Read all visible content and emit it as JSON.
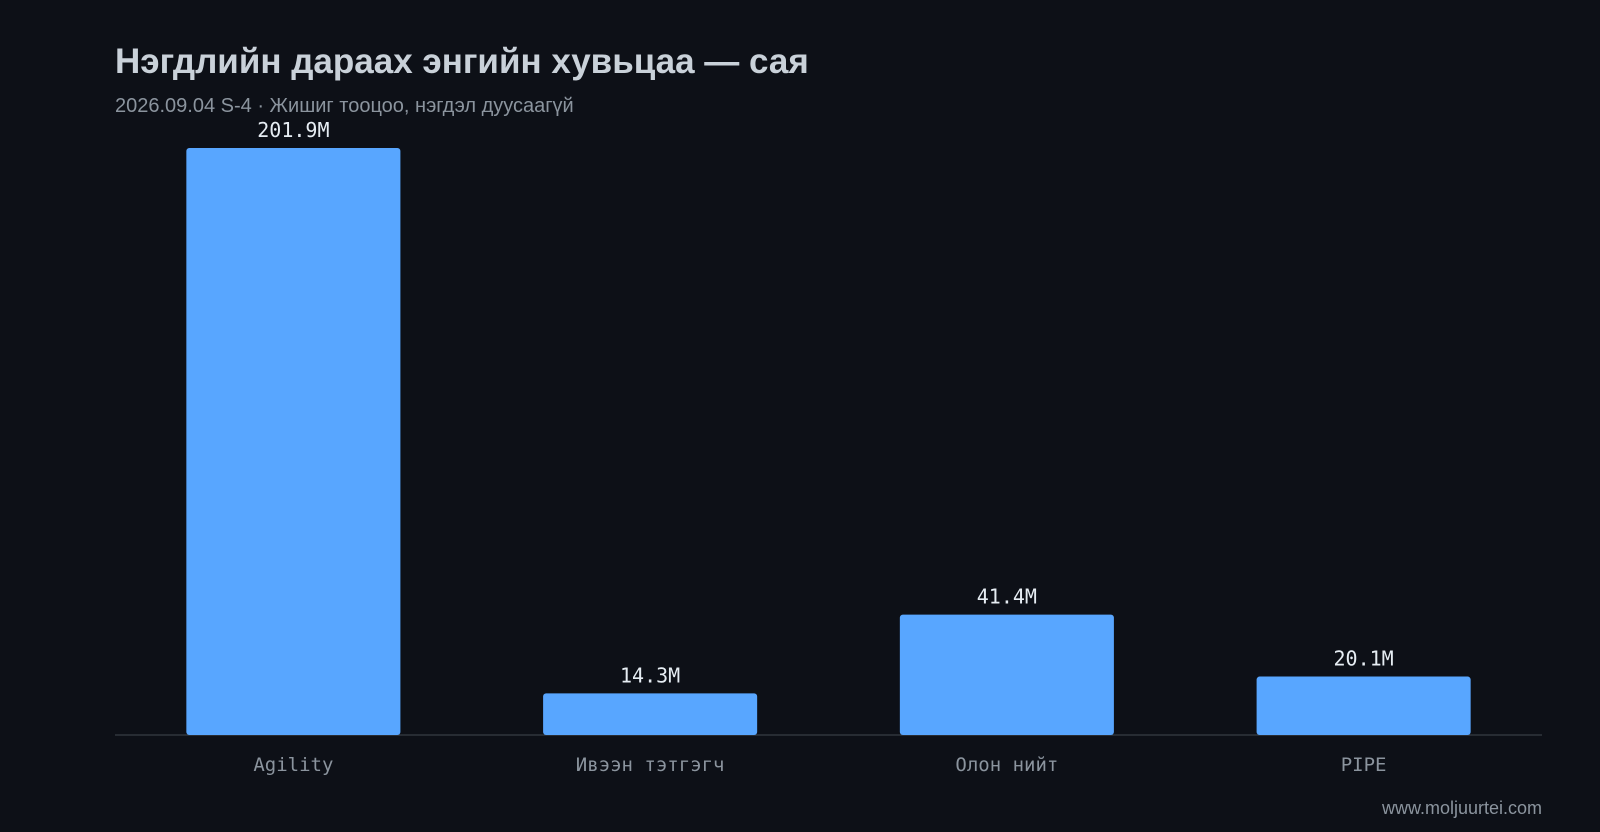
{
  "chart_data": {
    "type": "bar",
    "title": "Нэгдлийн дараах энгийн хувьцаа — сая",
    "subtitle": "2026.09.04 S-4 · Жишиг тооцоо, нэгдэл дуусаагүй",
    "categories": [
      "Agility",
      "Ивээн тэтгэгч",
      "Олон нийт",
      "PIPE"
    ],
    "values": [
      201.9,
      14.3,
      41.4,
      20.1
    ],
    "value_labels": [
      "201.9M",
      "14.3M",
      "41.4M",
      "20.1M"
    ],
    "color": "#58a6ff",
    "source": "www.moljuurtei.com"
  }
}
